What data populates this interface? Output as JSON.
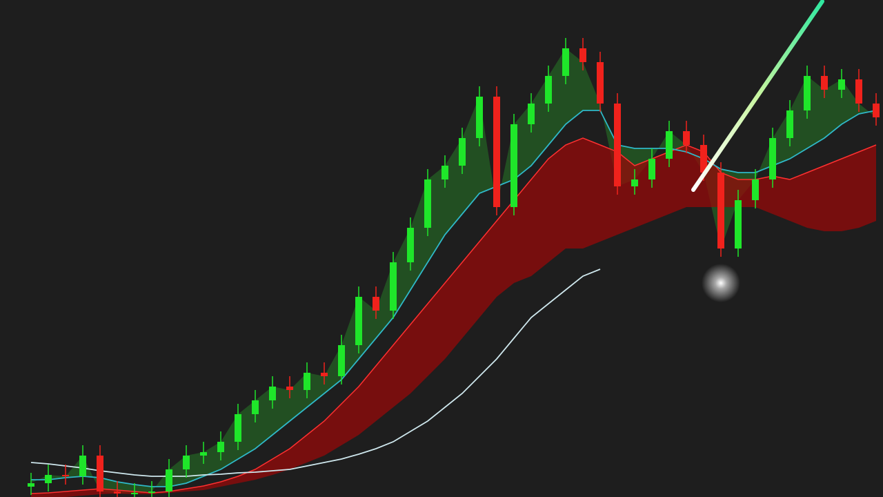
{
  "chart_data": {
    "type": "candlestick",
    "ylim": [
      0,
      720
    ],
    "up_color": "#1fe62a",
    "down_color": "#f0221c",
    "open": [
      15,
      20,
      32,
      30,
      60,
      8,
      5,
      6,
      8,
      40,
      60,
      65,
      80,
      120,
      140,
      160,
      155,
      180,
      175,
      220,
      290,
      270,
      340,
      390,
      460,
      480,
      520,
      580,
      420,
      540,
      570,
      610,
      650,
      630,
      570,
      450,
      460,
      490,
      530,
      510,
      470,
      360,
      430,
      460,
      520,
      560,
      610,
      590,
      605,
      570
    ],
    "high": [
      35,
      47,
      47,
      75,
      75,
      23,
      20,
      23,
      55,
      75,
      80,
      95,
      135,
      155,
      175,
      175,
      195,
      195,
      235,
      305,
      305,
      355,
      405,
      475,
      495,
      535,
      595,
      595,
      555,
      585,
      625,
      665,
      665,
      645,
      585,
      475,
      505,
      545,
      545,
      525,
      485,
      445,
      475,
      535,
      575,
      625,
      625,
      620,
      620,
      585
    ],
    "low": [
      3,
      8,
      18,
      18,
      0,
      0,
      0,
      0,
      0,
      28,
      48,
      53,
      68,
      108,
      128,
      143,
      143,
      163,
      163,
      208,
      258,
      258,
      328,
      378,
      448,
      468,
      508,
      408,
      408,
      528,
      558,
      598,
      618,
      558,
      438,
      438,
      448,
      478,
      498,
      458,
      348,
      348,
      418,
      448,
      508,
      548,
      578,
      578,
      558,
      538
    ],
    "close": [
      20,
      32,
      30,
      60,
      8,
      5,
      6,
      8,
      40,
      60,
      65,
      80,
      120,
      140,
      160,
      155,
      180,
      175,
      220,
      290,
      270,
      340,
      390,
      460,
      480,
      520,
      580,
      420,
      540,
      570,
      610,
      650,
      630,
      570,
      450,
      460,
      490,
      530,
      510,
      470,
      360,
      430,
      460,
      520,
      560,
      610,
      590,
      605,
      570,
      550
    ],
    "trend_fill": "rgba(40,140,40,0.45)",
    "cloud": {
      "color": "rgba(150,10,10,0.75)",
      "edge": "#ff3030",
      "upper": [
        5,
        6,
        8,
        10,
        12,
        10,
        8,
        6,
        8,
        12,
        16,
        22,
        30,
        40,
        55,
        70,
        90,
        110,
        135,
        160,
        190,
        220,
        250,
        280,
        310,
        340,
        370,
        400,
        430,
        460,
        490,
        510,
        520,
        510,
        500,
        480,
        490,
        500,
        510,
        500,
        470,
        460,
        460,
        465,
        460,
        470,
        480,
        490,
        500,
        510
      ],
      "lower": [
        0,
        0,
        0,
        2,
        4,
        5,
        4,
        4,
        6,
        8,
        10,
        15,
        20,
        25,
        32,
        40,
        50,
        60,
        75,
        90,
        110,
        130,
        150,
        175,
        200,
        230,
        260,
        290,
        310,
        320,
        340,
        360,
        360,
        370,
        380,
        390,
        400,
        410,
        420,
        420,
        420,
        420,
        420,
        410,
        400,
        390,
        385,
        385,
        390,
        400
      ]
    },
    "lines": [
      {
        "color": "#2fb8c8",
        "values": [
          25,
          25,
          28,
          30,
          28,
          22,
          18,
          15,
          15,
          20,
          30,
          40,
          55,
          70,
          90,
          110,
          130,
          150,
          170,
          200,
          230,
          260,
          300,
          340,
          380,
          410,
          440,
          450,
          460,
          480,
          510,
          540,
          560,
          560,
          510,
          505,
          505,
          505,
          500,
          490,
          475,
          470,
          470,
          480,
          490,
          505,
          520,
          540,
          555,
          560
        ]
      },
      {
        "color": "#cfe8ee",
        "values": [
          50,
          48,
          45,
          42,
          38,
          35,
          32,
          30,
          30,
          30,
          32,
          33,
          35,
          36,
          38,
          40,
          45,
          50,
          55,
          62,
          70,
          80,
          95,
          110,
          130,
          150,
          175,
          200,
          230,
          260,
          280,
          300,
          320,
          330,
          null,
          null,
          null,
          null,
          null,
          null,
          null,
          null,
          null,
          null,
          null,
          null,
          null,
          null,
          null,
          null
        ]
      }
    ]
  }
}
